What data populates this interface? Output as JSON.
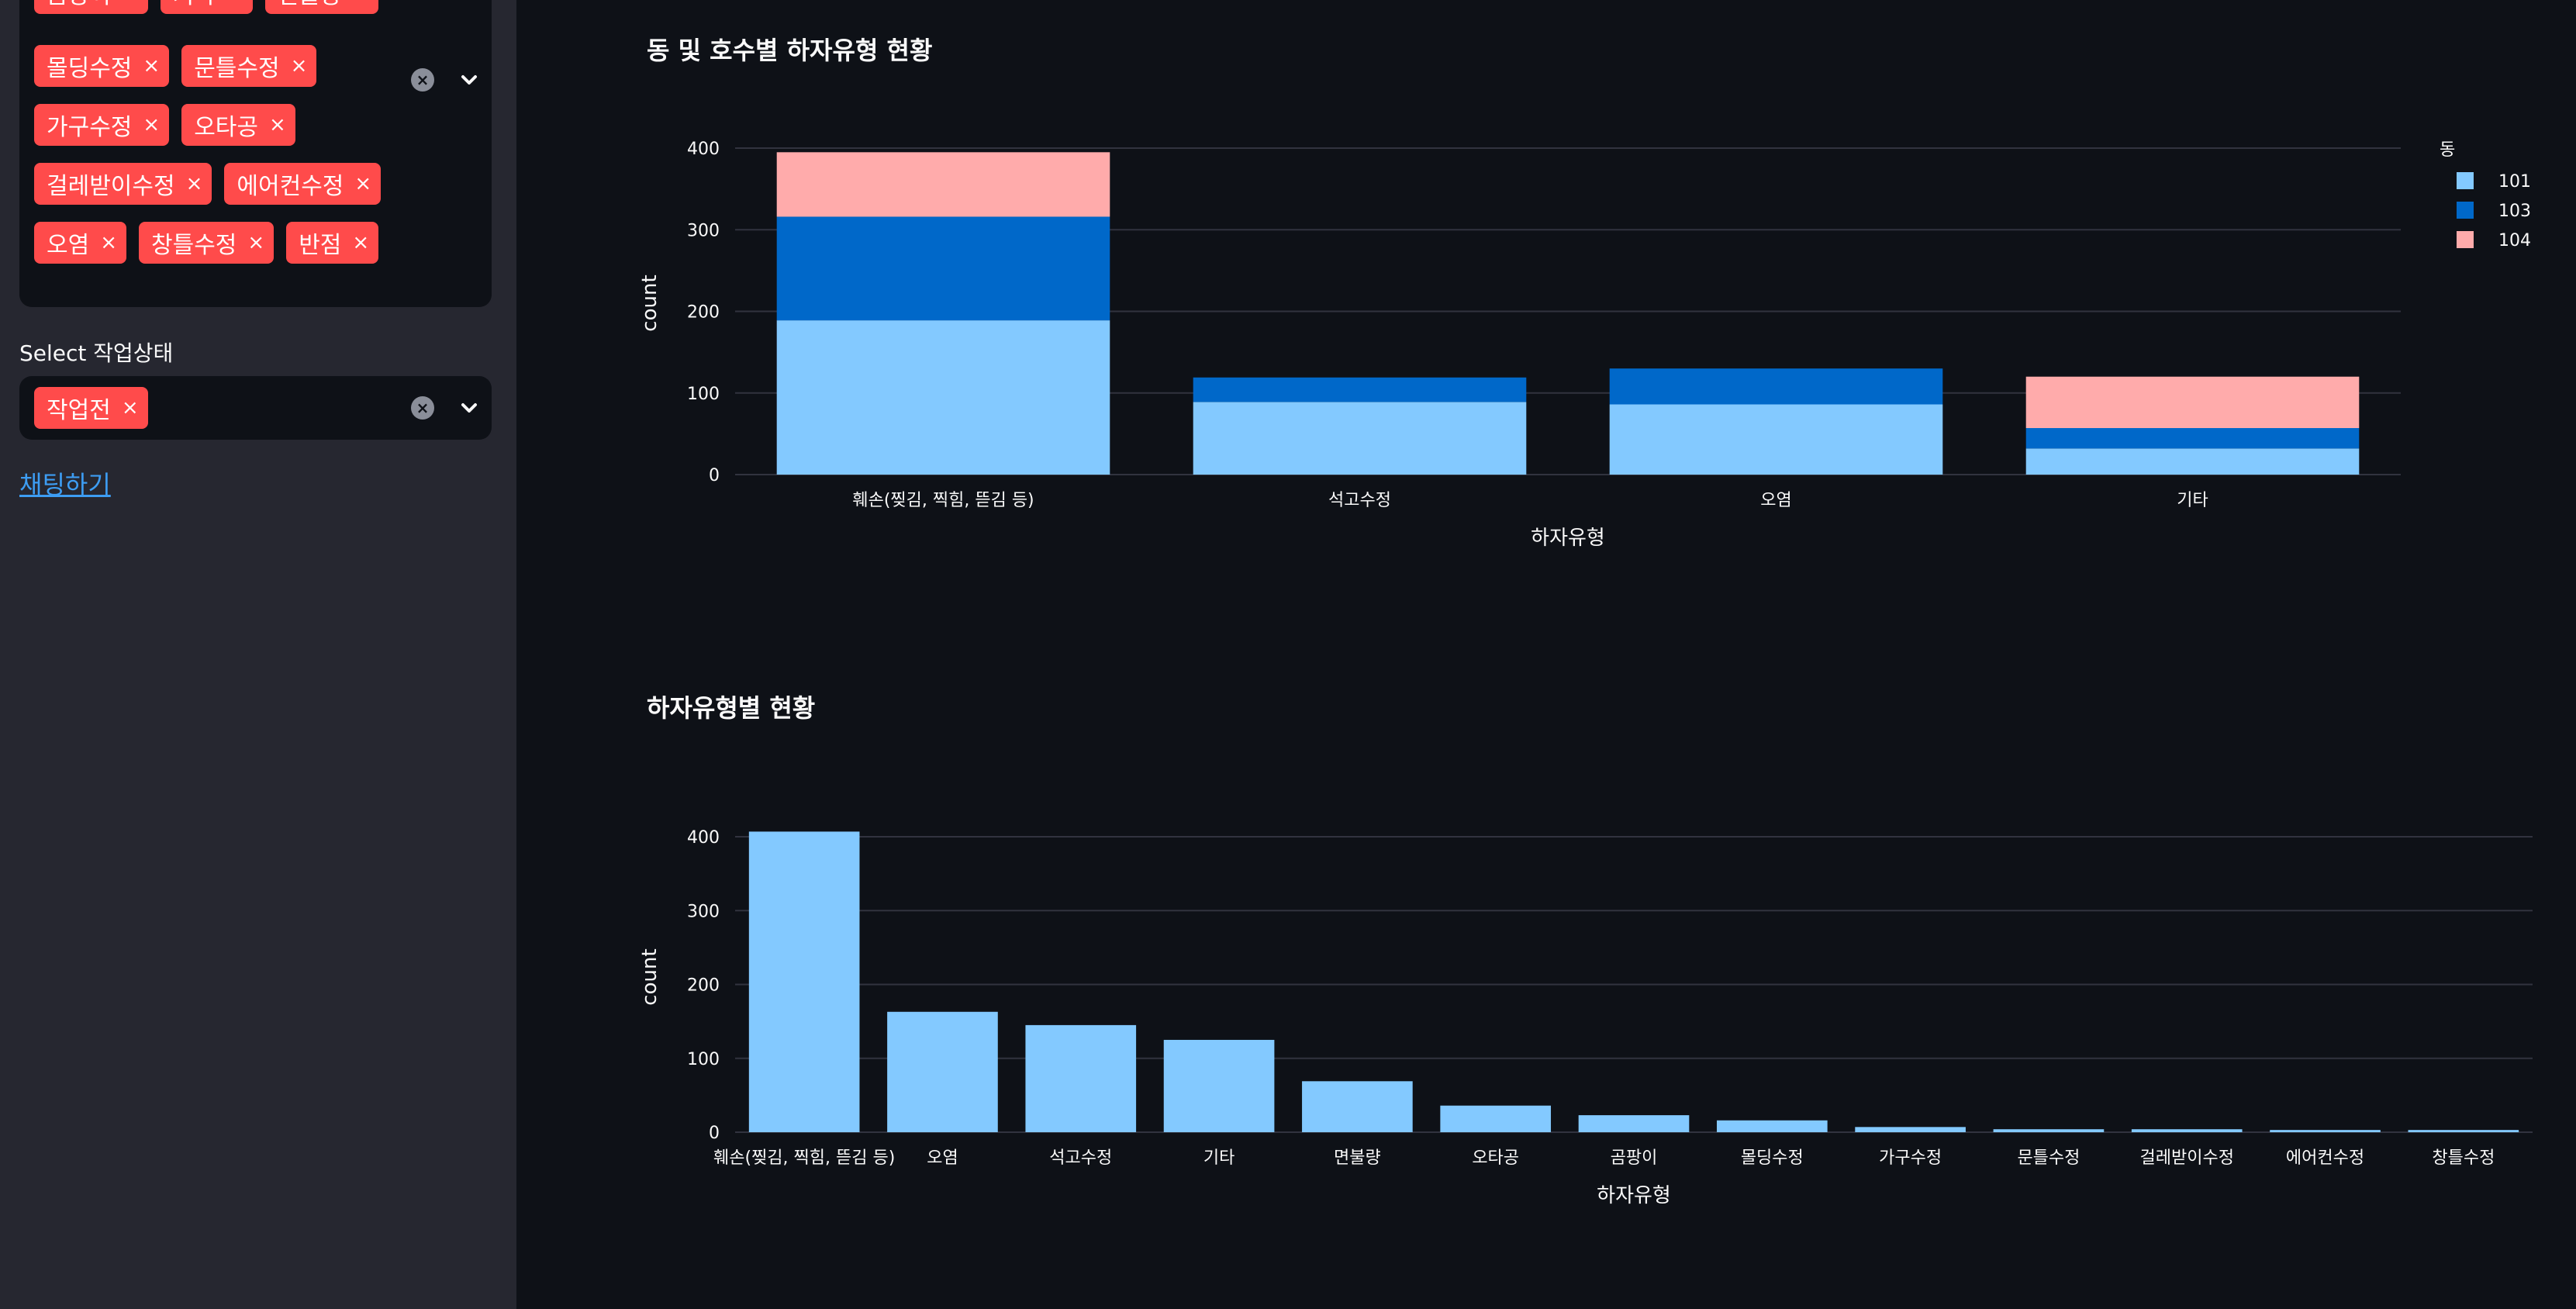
{
  "sidebar": {
    "defect_filter": {
      "tag_rows": [
        [
          "곰팡이",
          "기타",
          "면불량"
        ],
        [
          "몰딩수정",
          "문틀수정"
        ],
        [
          "가구수정",
          "오타공"
        ],
        [
          "걸레받이수정",
          "에어컨수정"
        ],
        [
          "오염",
          "창틀수정",
          "반점"
        ]
      ],
      "remove_symbol": "×"
    },
    "status_filter": {
      "label": "Select 작업상태",
      "tags": [
        "작업전"
      ]
    },
    "chat_link": "채팅하기"
  },
  "colors": {
    "sidebar_bg": "#262730",
    "main_bg": "#0e1117",
    "tag_bg": "#ff4b4b",
    "series_101": "#83c9ff",
    "series_103": "#0068c9",
    "series_104": "#ffabab",
    "link": "#3d9df3"
  },
  "chart_data": [
    {
      "type": "bar",
      "stacked": true,
      "title": "동 및 호수별 하자유형 현황",
      "xlabel": "하자유형",
      "ylabel": "count",
      "ylim": [
        0,
        420
      ],
      "yticks": [
        0,
        100,
        200,
        300,
        400
      ],
      "legend_title": "동",
      "legend_position": "top-right",
      "categories": [
        "훼손(찢김, 찍힘, 뜯김 등)",
        "석고수정",
        "오염",
        "기타"
      ],
      "series": [
        {
          "name": "101",
          "color": "#83c9ff",
          "values": [
            189,
            89,
            86,
            32
          ]
        },
        {
          "name": "103",
          "color": "#0068c9",
          "values": [
            127,
            30,
            44,
            25
          ]
        },
        {
          "name": "104",
          "color": "#ffabab",
          "values": [
            79,
            0,
            0,
            63
          ]
        }
      ],
      "grid": true
    },
    {
      "type": "bar",
      "title": "하자유형별 현황",
      "xlabel": "하자유형",
      "ylabel": "count",
      "ylim": [
        0,
        420
      ],
      "yticks": [
        0,
        100,
        200,
        300,
        400
      ],
      "categories": [
        "훼손(찢김, 찍힘, 뜯김 등)",
        "오염",
        "석고수정",
        "기타",
        "면불량",
        "오타공",
        "곰팡이",
        "몰딩수정",
        "가구수정",
        "문틀수정",
        "걸레받이수정",
        "에어컨수정",
        "창틀수정"
      ],
      "values": [
        407,
        163,
        145,
        125,
        69,
        36,
        23,
        16,
        7,
        4,
        4,
        3,
        3
      ],
      "color": "#83c9ff",
      "grid": true
    }
  ]
}
